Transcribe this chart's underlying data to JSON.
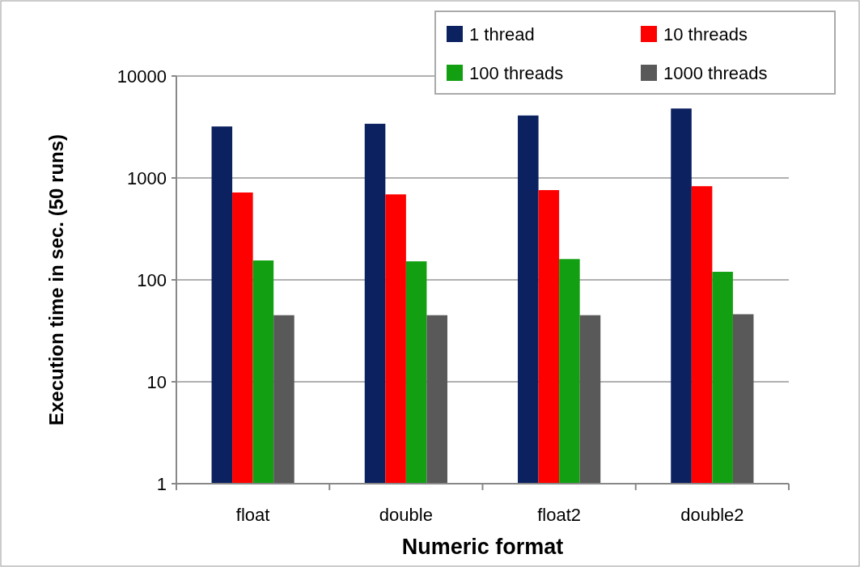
{
  "chart_data": {
    "type": "bar",
    "xlabel": "Numeric format",
    "ylabel": "Execution time in sec. (50 runs)",
    "categories": [
      "float",
      "double",
      "float2",
      "double2"
    ],
    "series": [
      {
        "name": "1 thread",
        "color": "#0b2160",
        "values": [
          3200,
          3400,
          4100,
          4800
        ]
      },
      {
        "name": "10 threads",
        "color": "#ff0000",
        "values": [
          720,
          690,
          760,
          830
        ]
      },
      {
        "name": "100 threads",
        "color": "#12a012",
        "values": [
          155,
          152,
          160,
          120
        ]
      },
      {
        "name": "1000 threads",
        "color": "#595959",
        "values": [
          45,
          45,
          45,
          46
        ]
      }
    ],
    "log": true,
    "ylim": [
      1,
      10000
    ],
    "yticks": [
      1,
      10,
      100,
      1000,
      10000
    ],
    "grid": "y",
    "legend": "top right"
  }
}
